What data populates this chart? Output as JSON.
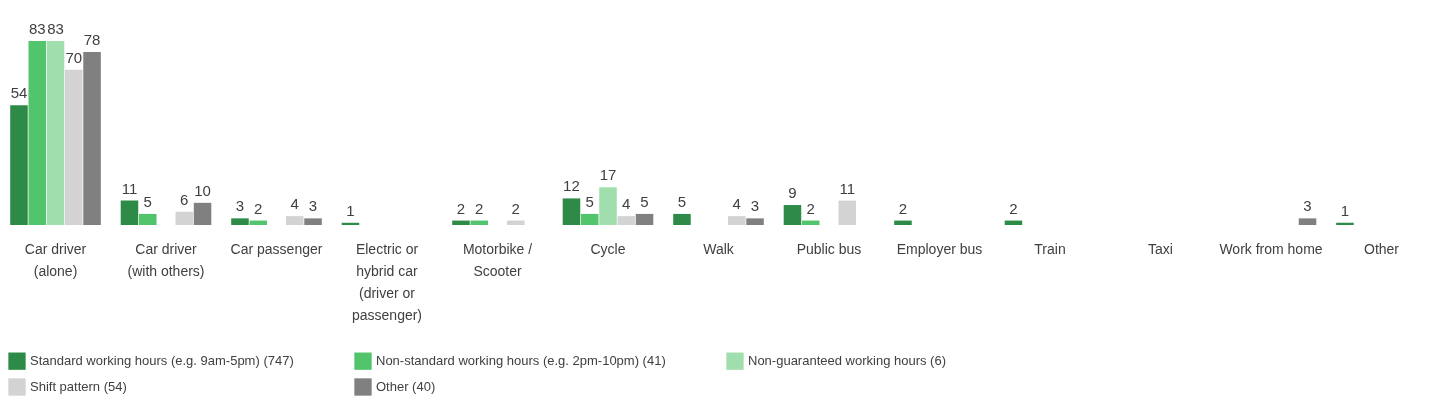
{
  "chart_data": {
    "type": "bar",
    "categories": [
      "Car driver (alone)",
      "Car driver (with others)",
      "Car passenger",
      "Electric or hybrid car (driver or passenger)",
      "Motorbike / Scooter",
      "Cycle",
      "Walk",
      "Public bus",
      "Employer bus",
      "Train",
      "Taxi",
      "Work from home",
      "Other"
    ],
    "series": [
      {
        "name": "Standard working hours (e.g. 9am-5pm) (747)",
        "color": "#2e8b47",
        "values": [
          54,
          11,
          3,
          1,
          2,
          12,
          5,
          9,
          2,
          2,
          0,
          0,
          1
        ],
        "value_labels": [
          "54",
          "11",
          "3",
          "1",
          "2",
          "12",
          "5",
          "9",
          "2",
          "2",
          null,
          null,
          "1"
        ]
      },
      {
        "name": "Non-standard working hours (e.g. 2pm-10pm) (41)",
        "color": "#52c46b",
        "values": [
          83,
          5,
          2,
          0,
          2,
          5,
          0,
          2,
          0,
          0,
          0,
          0,
          0
        ],
        "value_labels": [
          "83",
          "5",
          "2",
          null,
          "2",
          "5",
          null,
          "2",
          null,
          null,
          null,
          null,
          null
        ]
      },
      {
        "name": "Non-guaranteed working hours (6)",
        "color": "#a0dfad",
        "values": [
          83,
          0,
          0,
          0,
          0,
          17,
          0,
          0,
          0,
          0,
          0,
          0,
          0
        ],
        "value_labels": [
          "83",
          null,
          null,
          null,
          null,
          "17",
          null,
          null,
          null,
          null,
          null,
          null,
          null
        ]
      },
      {
        "name": "Shift pattern (54)",
        "color": "#d3d3d3",
        "values": [
          70,
          6,
          4,
          0,
          2,
          4,
          4,
          11,
          0,
          0,
          0,
          0,
          0
        ],
        "value_labels": [
          "70",
          "6",
          "4",
          null,
          "2",
          "4",
          "4",
          "11",
          null,
          null,
          null,
          null,
          null
        ]
      },
      {
        "name": "Other (40)",
        "color": "#808080",
        "values": [
          78,
          10,
          3,
          0,
          0,
          5,
          3,
          0,
          0,
          0,
          0,
          3,
          0
        ],
        "value_labels": [
          "78",
          "10",
          "3",
          null,
          null,
          "5",
          "3",
          null,
          null,
          null,
          null,
          "3",
          null
        ]
      }
    ],
    "legend": "bottom",
    "grid": false
  }
}
